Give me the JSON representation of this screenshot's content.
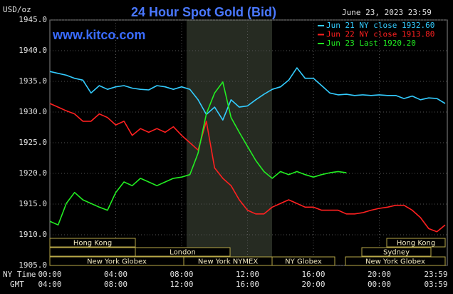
{
  "chart_data": {
    "type": "line",
    "title": "24 Hour Spot Gold (Bid)",
    "timestamp": "June 23, 2023 23:59",
    "watermark": "www.kitco.com",
    "y_axis_label": "USD/oz",
    "x_row_labels": [
      "NY Time",
      "GMT"
    ],
    "x": [
      0,
      0.5,
      1,
      1.5,
      2,
      2.5,
      3,
      3.5,
      4,
      4.5,
      5,
      5.5,
      6,
      6.5,
      7,
      7.5,
      8,
      8.5,
      9,
      9.5,
      10,
      10.5,
      11,
      11.5,
      12,
      12.5,
      13,
      13.5,
      14,
      14.5,
      15,
      15.5,
      16,
      16.5,
      17,
      17.5,
      18,
      18.5,
      19,
      19.5,
      20,
      20.5,
      21,
      21.5,
      22,
      22.5,
      23,
      23.5,
      24
    ],
    "xlim": [
      0,
      24
    ],
    "xticks": [
      {
        "value": 0,
        "label": "00:00"
      },
      {
        "value": 4,
        "label": "04:00"
      },
      {
        "value": 8,
        "label": "08:00"
      },
      {
        "value": 12,
        "label": "12:00"
      },
      {
        "value": 16,
        "label": "16:00"
      },
      {
        "value": 20,
        "label": "20:00"
      },
      {
        "value": 23.98,
        "label": "23:59"
      }
    ],
    "gmt_tick_labels": [
      "04:00",
      "08:00",
      "12:00",
      "16:00",
      "20:00",
      "00:00",
      "03:59"
    ],
    "ylim": [
      1905,
      1945
    ],
    "yticks": [
      {
        "value": 1905,
        "label": "1905.0"
      },
      {
        "value": 1910,
        "label": "1910.0"
      },
      {
        "value": 1915,
        "label": "1915.0"
      },
      {
        "value": 1920,
        "label": "1920.0"
      },
      {
        "value": 1925,
        "label": "1925.0"
      },
      {
        "value": 1930,
        "label": "1930.0"
      },
      {
        "value": 1935,
        "label": "1935.0"
      },
      {
        "value": 1940,
        "label": "1940.0"
      },
      {
        "value": 1945,
        "label": "1945.0"
      }
    ],
    "grid": true,
    "sessions": [
      "Hong Kong",
      "London",
      "New York Globex",
      "New York NYMEX",
      "NY Globex",
      "Hong Kong",
      "Sydney",
      "New York Globex"
    ],
    "series": [
      {
        "name": "Jun 21 NY close 1932.60",
        "color": "#33ccff",
        "values": [
          1936.6,
          1936.3,
          1936.0,
          1935.5,
          1935.2,
          1933.1,
          1934.3,
          1933.7,
          1934.1,
          1934.3,
          1933.9,
          1933.7,
          1933.6,
          1934.3,
          1934.1,
          1933.7,
          1934.1,
          1933.7,
          1932.0,
          1929.6,
          1930.8,
          1928.7,
          1932.0,
          1930.8,
          1931.0,
          1932.0,
          1932.9,
          1933.7,
          1934.1,
          1935.2,
          1937.2,
          1935.5,
          1935.5,
          1934.3,
          1933.1,
          1932.8,
          1932.9,
          1932.7,
          1932.8,
          1932.7,
          1932.8,
          1932.7,
          1932.7,
          1932.2,
          1932.6,
          1932.0,
          1932.3,
          1932.2,
          1931.4
        ]
      },
      {
        "name": "Jun 22 NY close 1913.80",
        "color": "#ff2020",
        "values": [
          1931.4,
          1930.8,
          1930.2,
          1929.7,
          1928.5,
          1928.5,
          1929.7,
          1929.1,
          1927.9,
          1928.5,
          1926.2,
          1927.3,
          1926.7,
          1927.3,
          1926.7,
          1927.6,
          1926.2,
          1925.0,
          1923.8,
          1928.5,
          1920.9,
          1919.2,
          1918.0,
          1915.7,
          1914.0,
          1913.4,
          1913.4,
          1914.5,
          1915.1,
          1915.7,
          1915.1,
          1914.5,
          1914.5,
          1914.0,
          1914.0,
          1914.0,
          1913.4,
          1913.4,
          1913.6,
          1914.0,
          1914.3,
          1914.5,
          1914.8,
          1914.8,
          1914.0,
          1912.8,
          1911.0,
          1910.5,
          1911.6
        ]
      },
      {
        "name": "Jun 23 Last 1920.20",
        "color": "#22ee22",
        "values": [
          1912.2,
          1911.6,
          1915.1,
          1916.9,
          1915.7,
          1915.1,
          1914.5,
          1914.0,
          1916.9,
          1918.6,
          1918.0,
          1919.2,
          1918.6,
          1918.0,
          1918.6,
          1919.2,
          1919.4,
          1919.8,
          1923.3,
          1929.7,
          1933.1,
          1934.9,
          1929.1,
          1926.7,
          1924.4,
          1922.1,
          1920.3,
          1919.2,
          1920.3,
          1919.8,
          1920.3,
          1919.8,
          1919.4,
          1919.8,
          1920.1,
          1920.3,
          1920.1,
          null,
          null,
          null,
          null,
          null,
          null,
          null,
          null,
          null,
          null,
          null,
          null
        ]
      }
    ]
  }
}
